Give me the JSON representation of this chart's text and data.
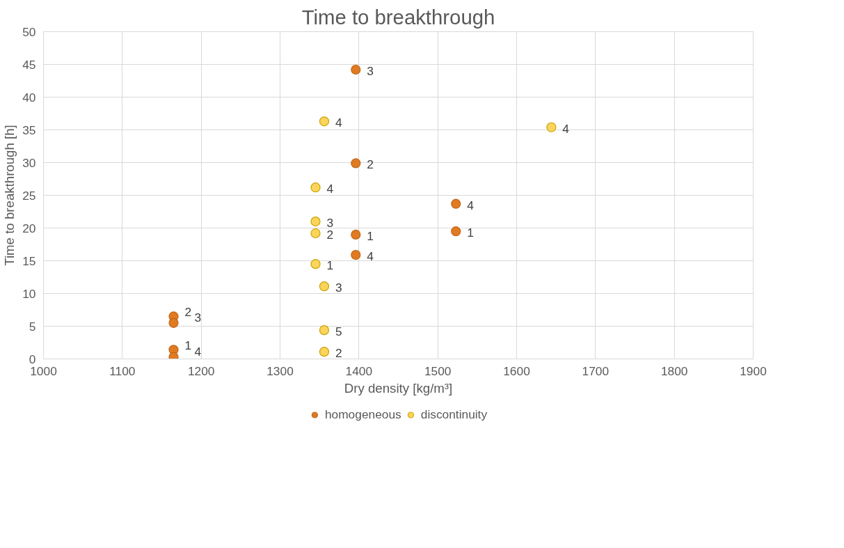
{
  "chart_data": {
    "type": "scatter",
    "title": "Time to breakthrough",
    "xlabel": "Dry density [kg/m³]",
    "ylabel": "Time to breakthrough [h]",
    "xlim": [
      1000,
      1900
    ],
    "xticks": [
      1000,
      1100,
      1200,
      1300,
      1400,
      1500,
      1600,
      1700,
      1800,
      1900
    ],
    "ylim": [
      0,
      50
    ],
    "yticks": [
      0,
      5,
      10,
      15,
      20,
      25,
      30,
      35,
      40,
      45,
      50
    ],
    "grid": true,
    "legend": "bottom",
    "marker": "circle",
    "series": [
      {
        "name": "homogeneous",
        "color": "#e07b22",
        "x": [
          1165,
          1165,
          1165,
          1165,
          1396,
          1396,
          1396,
          1396,
          1523,
          1523
        ],
        "values": [
          6.5,
          5.5,
          1.4,
          0.3,
          44.2,
          29.9,
          19.0,
          15.9,
          23.7,
          19.5
        ]
      },
      {
        "name": "discontinuity",
        "color": "#fcd45c",
        "x": [
          1356,
          1356,
          1356,
          1356,
          1345,
          1345,
          1345,
          1345,
          1644
        ],
        "values": [
          36.3,
          11.1,
          4.4,
          1.1,
          26.2,
          21.0,
          19.2,
          14.5,
          35.4
        ]
      }
    ],
    "annotations": [
      {
        "text": "2",
        "x": 1165,
        "y": 6.5
      },
      {
        "text": "3",
        "x": 1165,
        "y": 5.5
      },
      {
        "text": "1",
        "x": 1165,
        "y": 1.4
      },
      {
        "text": "4",
        "x": 1165,
        "y": 0.3
      },
      {
        "text": "3",
        "x": 1396,
        "y": 44.2
      },
      {
        "text": "2",
        "x": 1396,
        "y": 29.9
      },
      {
        "text": "1",
        "x": 1396,
        "y": 19.0
      },
      {
        "text": "4",
        "x": 1396,
        "y": 15.9
      },
      {
        "text": "4",
        "x": 1523,
        "y": 23.7
      },
      {
        "text": "1",
        "x": 1523,
        "y": 19.5
      },
      {
        "text": "4",
        "x": 1356,
        "y": 36.3
      },
      {
        "text": "3",
        "x": 1356,
        "y": 11.1
      },
      {
        "text": "5",
        "x": 1356,
        "y": 4.4
      },
      {
        "text": "2",
        "x": 1356,
        "y": 1.1
      },
      {
        "text": "4",
        "x": 1345,
        "y": 26.2
      },
      {
        "text": "3",
        "x": 1345,
        "y": 21.0
      },
      {
        "text": "2",
        "x": 1345,
        "y": 19.2
      },
      {
        "text": "1",
        "x": 1345,
        "y": 14.5
      },
      {
        "text": "4",
        "x": 1644,
        "y": 35.4
      }
    ]
  }
}
